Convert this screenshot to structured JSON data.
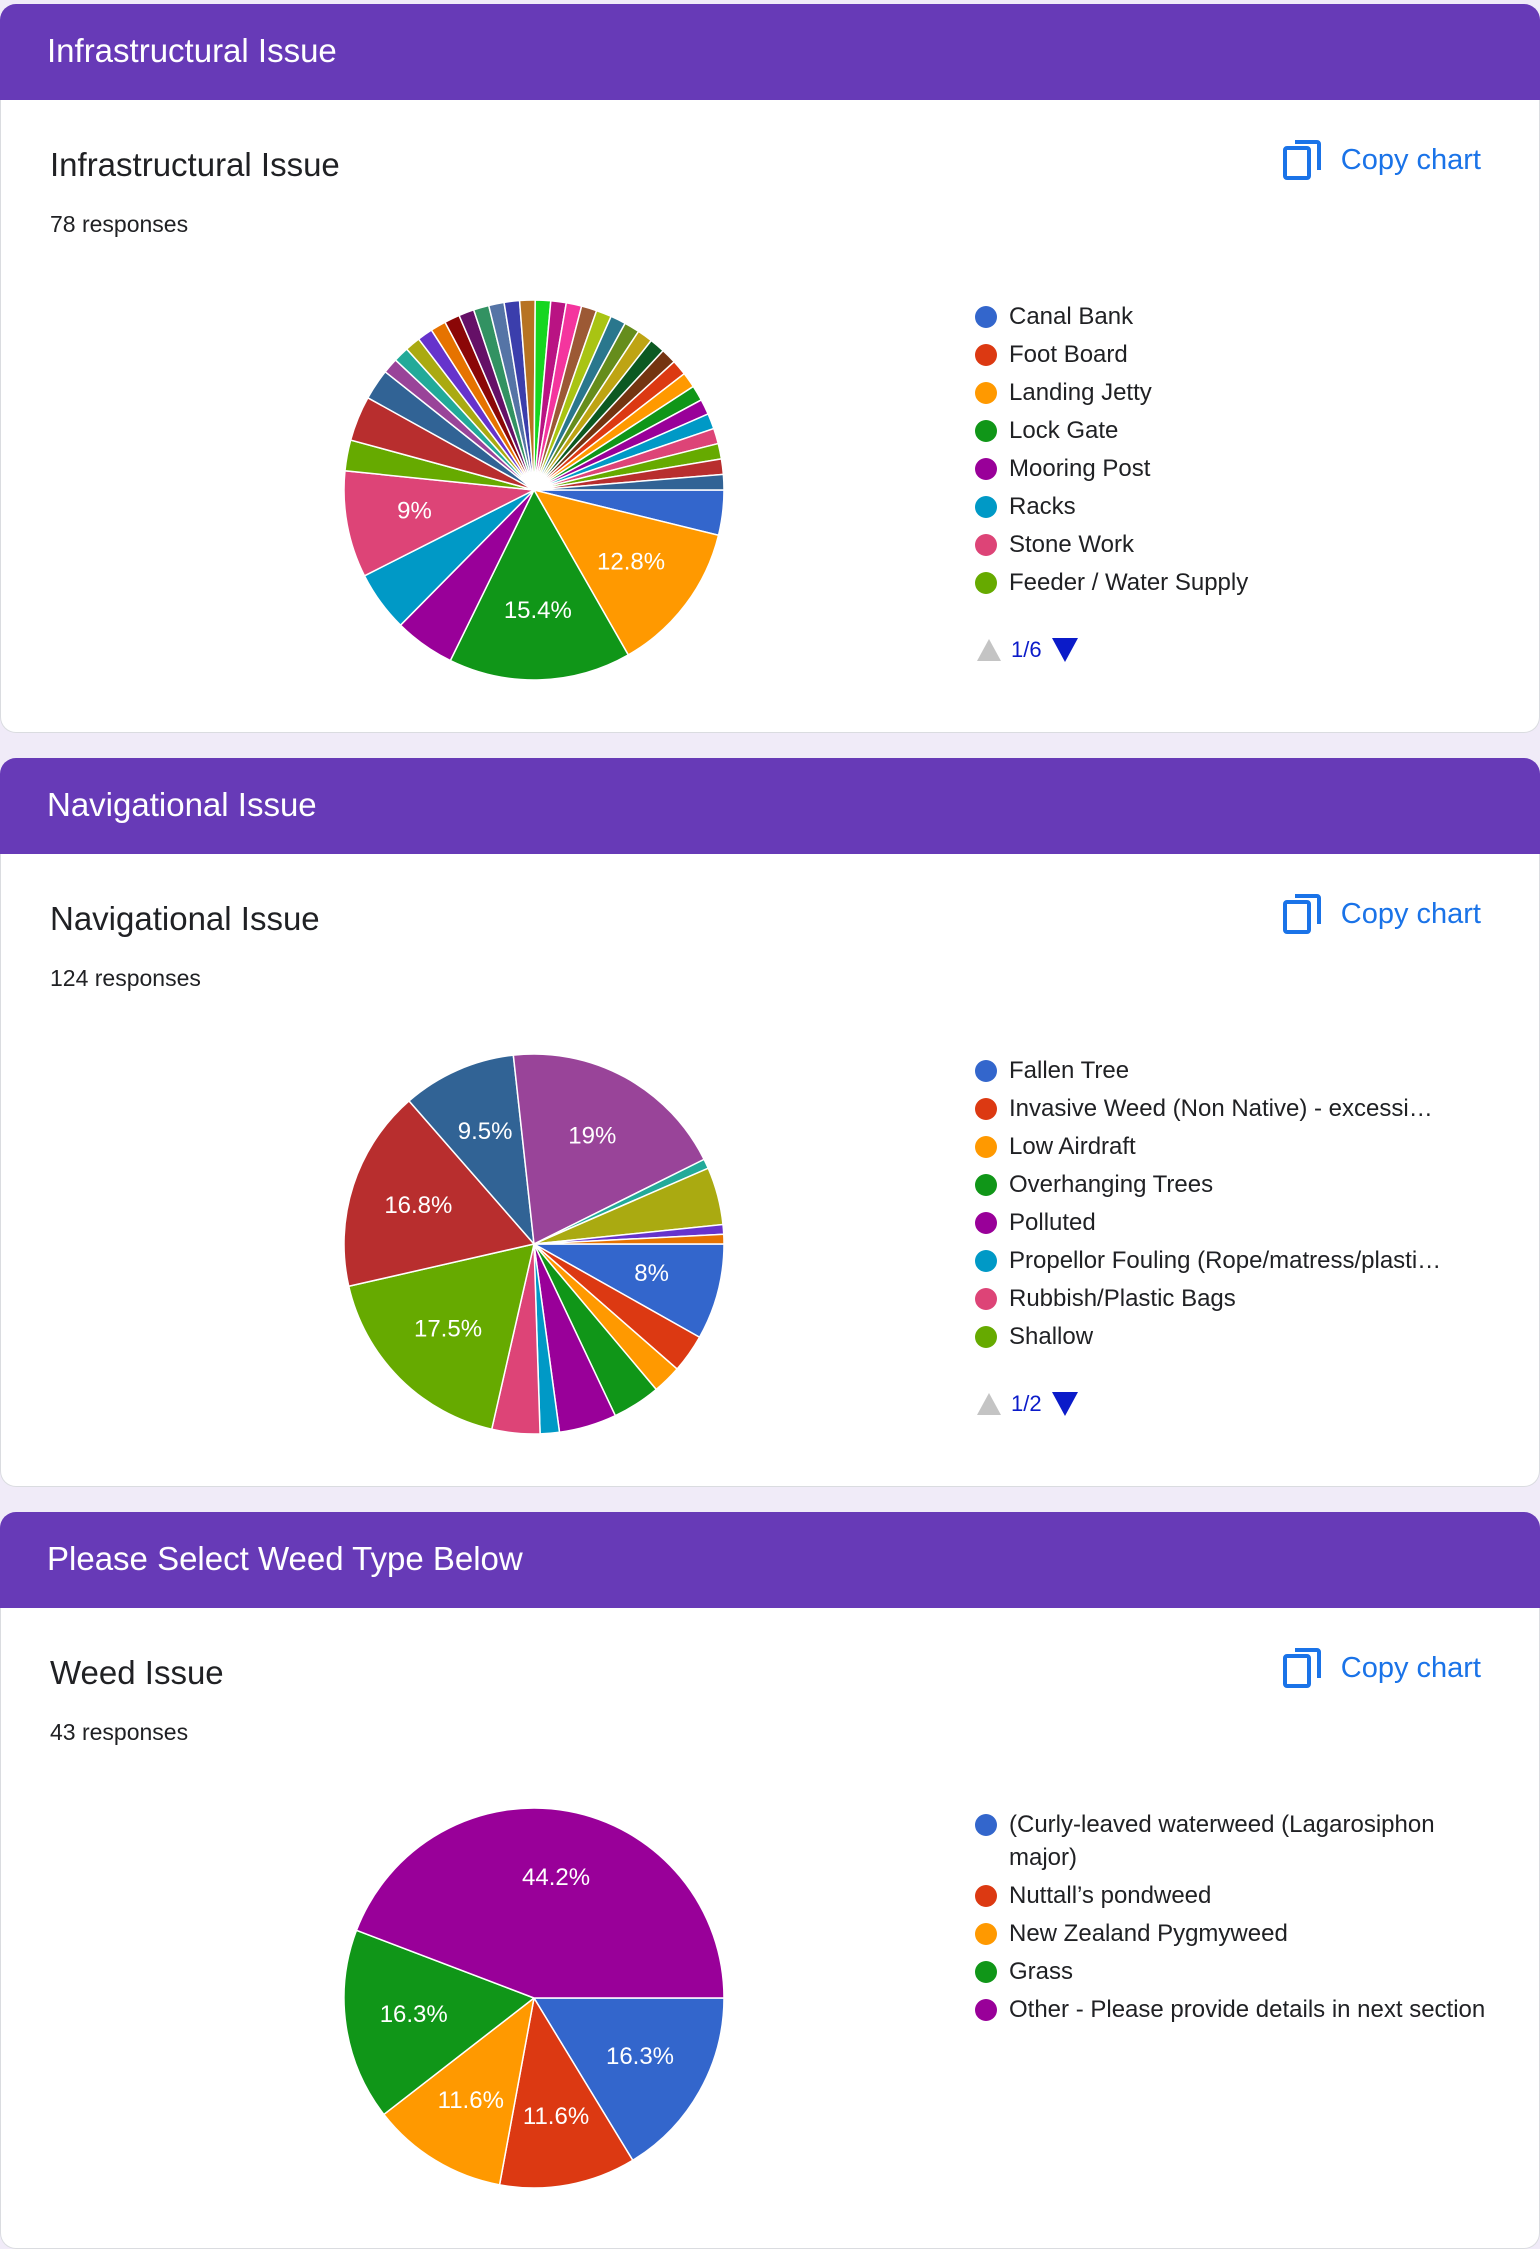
{
  "colors": {
    "header_bg": "#673ab7",
    "accent_link": "#1a73e8",
    "page_bg": "#f0ebf8"
  },
  "sections": [
    {
      "header_title": "Infrastructural Issue",
      "question_title": "Infrastructural Issue",
      "responses": "78 responses",
      "copy_label": "Copy chart",
      "copy_icon": "copy-icon",
      "pager": "1/6",
      "legend": [
        {
          "label": "Canal Bank",
          "color": "#3366cc"
        },
        {
          "label": "Foot Board",
          "color": "#dc3912"
        },
        {
          "label": "Landing Jetty",
          "color": "#ff9900"
        },
        {
          "label": "Lock Gate",
          "color": "#109618"
        },
        {
          "label": "Mooring Post",
          "color": "#990099"
        },
        {
          "label": "Racks",
          "color": "#0099c6"
        },
        {
          "label": "Stone Work",
          "color": "#dd4477"
        },
        {
          "label": "Feeder / Water Supply",
          "color": "#66aa00"
        }
      ]
    },
    {
      "header_title": "Navigational Issue",
      "question_title": "Navigational Issue",
      "responses": "124 responses",
      "copy_label": "Copy chart",
      "copy_icon": "copy-icon",
      "pager": "1/2",
      "legend": [
        {
          "label": "Fallen Tree",
          "color": "#3366cc"
        },
        {
          "label": "Invasive Weed (Non Native) - excessi…",
          "color": "#dc3912"
        },
        {
          "label": "Low Airdraft",
          "color": "#ff9900"
        },
        {
          "label": "Overhanging Trees",
          "color": "#109618"
        },
        {
          "label": "Polluted",
          "color": "#990099"
        },
        {
          "label": "Propellor Fouling (Rope/matress/plasti…",
          "color": "#0099c6"
        },
        {
          "label": "Rubbish/Plastic Bags",
          "color": "#dd4477"
        },
        {
          "label": "Shallow",
          "color": "#66aa00"
        }
      ]
    },
    {
      "header_title": "Please Select Weed Type Below",
      "question_title": "Weed Issue",
      "responses": "43 responses",
      "copy_label": "Copy chart",
      "copy_icon": "copy-icon",
      "legend": [
        {
          "label": "(Curly-leaved waterweed (Lagarosiphon major)",
          "color": "#3366cc"
        },
        {
          "label": "Nuttall’s pondweed",
          "color": "#dc3912"
        },
        {
          "label": "New Zealand Pygmyweed",
          "color": "#ff9900"
        },
        {
          "label": "Grass",
          "color": "#109618"
        },
        {
          "label": "Other - Please provide details in next section",
          "color": "#990099"
        }
      ]
    }
  ],
  "chart_data": [
    {
      "type": "pie",
      "title": "Infrastructural Issue",
      "unit": "percent",
      "slices": [
        {
          "name": "Canal Bank",
          "value": 3.8,
          "color": "#3366cc"
        },
        {
          "name": "Foot Board",
          "value": 0,
          "color": "#dc3912"
        },
        {
          "name": "Landing Jetty",
          "value": 12.8,
          "label": "12.8%",
          "color": "#ff9900"
        },
        {
          "name": "Lock Gate",
          "value": 15.4,
          "label": "15.4%",
          "color": "#109618"
        },
        {
          "name": "Mooring Post",
          "value": 5.1,
          "color": "#990099"
        },
        {
          "name": "Racks",
          "value": 5.1,
          "color": "#0099c6"
        },
        {
          "name": "Stone Work",
          "value": 9.0,
          "label": "9%",
          "color": "#dd4477"
        },
        {
          "name": "Feeder / Water Supply",
          "value": 2.6,
          "color": "#66aa00"
        },
        {
          "value": 3.8,
          "color": "#b82e2e"
        },
        {
          "value": 2.6,
          "color": "#316395"
        },
        {
          "value": 1.3,
          "color": "#994499"
        },
        {
          "value": 1.3,
          "color": "#22aa99"
        },
        {
          "value": 1.3,
          "color": "#aaaa11"
        },
        {
          "value": 1.3,
          "color": "#6633cc"
        },
        {
          "value": 1.3,
          "color": "#e67300"
        },
        {
          "value": 1.3,
          "color": "#8b0707"
        },
        {
          "value": 1.3,
          "color": "#651067"
        },
        {
          "value": 1.3,
          "color": "#329262"
        },
        {
          "value": 1.3,
          "color": "#5574a6"
        },
        {
          "value": 1.3,
          "color": "#3b3eac"
        },
        {
          "value": 1.3,
          "color": "#b77322"
        },
        {
          "value": 1.3,
          "color": "#16d620"
        },
        {
          "value": 1.3,
          "color": "#b91383"
        },
        {
          "value": 1.3,
          "color": "#f4359e"
        },
        {
          "value": 1.3,
          "color": "#9c5935"
        },
        {
          "value": 1.3,
          "color": "#a9c413"
        },
        {
          "value": 1.3,
          "color": "#2a778d"
        },
        {
          "value": 1.3,
          "color": "#668d1c"
        },
        {
          "value": 1.3,
          "color": "#bea413"
        },
        {
          "value": 1.3,
          "color": "#0c5922"
        },
        {
          "value": 1.3,
          "color": "#743411"
        },
        {
          "value": 1.3,
          "color": "#dc3912"
        },
        {
          "value": 1.3,
          "color": "#ff9900"
        },
        {
          "value": 1.3,
          "color": "#109618"
        },
        {
          "value": 1.3,
          "color": "#990099"
        },
        {
          "value": 1.3,
          "color": "#0099c6"
        },
        {
          "value": 1.3,
          "color": "#dd4477"
        },
        {
          "value": 1.3,
          "color": "#66aa00"
        },
        {
          "value": 1.3,
          "color": "#b82e2e"
        },
        {
          "value": 1.3,
          "color": "#316395"
        }
      ]
    },
    {
      "type": "pie",
      "title": "Navigational Issue",
      "unit": "percent",
      "slices": [
        {
          "name": "Fallen Tree",
          "value": 8.0,
          "label": "8%",
          "color": "#3366cc"
        },
        {
          "name": "Invasive Weed (Non Native) - excessi…",
          "value": 3.2,
          "color": "#dc3912"
        },
        {
          "name": "Low Airdraft",
          "value": 2.4,
          "color": "#ff9900"
        },
        {
          "name": "Overhanging Trees",
          "value": 4.0,
          "color": "#109618"
        },
        {
          "name": "Polluted",
          "value": 4.8,
          "color": "#990099"
        },
        {
          "name": "Propellor Fouling (Rope/matress/plasti…",
          "value": 1.6,
          "color": "#0099c6"
        },
        {
          "name": "Rubbish/Plastic Bags",
          "value": 4.0,
          "color": "#dd4477"
        },
        {
          "name": "Shallow",
          "value": 17.5,
          "label": "17.5%",
          "color": "#66aa00"
        },
        {
          "value": 16.8,
          "label": "16.8%",
          "color": "#b82e2e"
        },
        {
          "value": 9.5,
          "label": "9.5%",
          "color": "#316395"
        },
        {
          "value": 19.0,
          "label": "19%",
          "color": "#994499"
        },
        {
          "value": 0.8,
          "color": "#22aa99"
        },
        {
          "value": 4.8,
          "color": "#aaaa11"
        },
        {
          "value": 0.8,
          "color": "#6633cc"
        },
        {
          "value": 0.8,
          "color": "#e67300"
        }
      ]
    },
    {
      "type": "pie",
      "title": "Weed Issue",
      "unit": "percent",
      "slices": [
        {
          "name": "(Curly-leaved waterweed (Lagarosiphon major)",
          "value": 16.3,
          "label": "16.3%",
          "color": "#3366cc"
        },
        {
          "name": "Nuttall’s pondweed",
          "value": 11.6,
          "label": "11.6%",
          "color": "#dc3912"
        },
        {
          "name": "New Zealand Pygmyweed",
          "value": 11.6,
          "label": "11.6%",
          "color": "#ff9900"
        },
        {
          "name": "Grass",
          "value": 16.3,
          "label": "16.3%",
          "color": "#109618"
        },
        {
          "name": "Other - Please provide details in next section",
          "value": 44.2,
          "label": "44.2%",
          "color": "#990099"
        }
      ]
    }
  ]
}
